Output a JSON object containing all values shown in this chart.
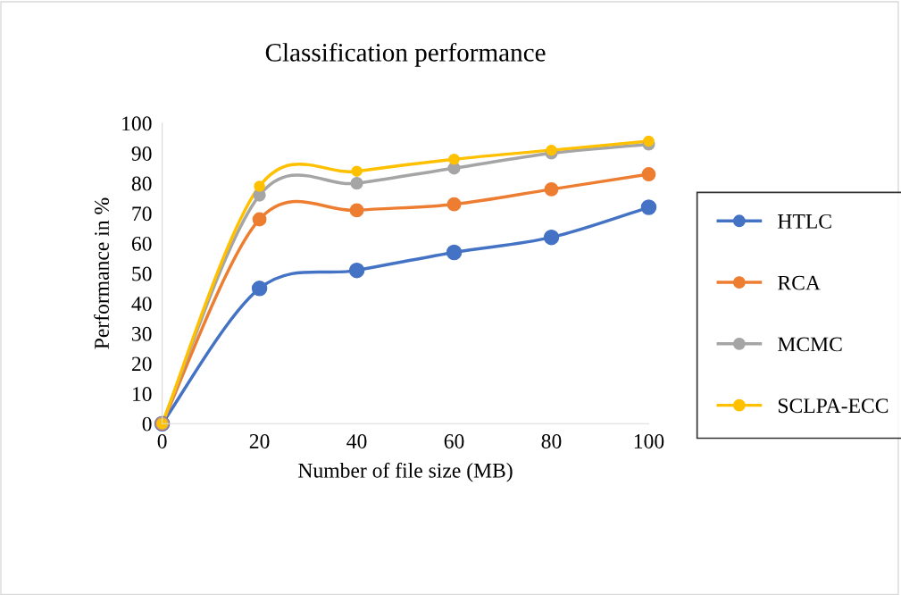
{
  "chart_data": {
    "type": "line",
    "title": "Classification performance",
    "xlabel": "Number of file size (MB)",
    "ylabel": "Performance in %",
    "categories": [
      "0",
      "20",
      "40",
      "60",
      "80",
      "100"
    ],
    "series": [
      {
        "name": "HTLC",
        "color": "#4472c4",
        "values": [
          0,
          45,
          51,
          57,
          62,
          72
        ]
      },
      {
        "name": "RCA",
        "color": "#ed7d31",
        "values": [
          0,
          68,
          71,
          73,
          78,
          83
        ]
      },
      {
        "name": "MCMC",
        "color": "#a5a5a5",
        "values": [
          0,
          76,
          80,
          85,
          90,
          93
        ]
      },
      {
        "name": "SCLPA-ECC",
        "color": "#ffc000",
        "values": [
          0,
          79,
          84,
          88,
          91,
          94
        ]
      }
    ],
    "ylim": [
      0,
      100
    ],
    "yticks": [
      0,
      10,
      20,
      30,
      40,
      50,
      60,
      70,
      80,
      90,
      100
    ],
    "grid": false,
    "legend": "right",
    "marker": "circle",
    "line_style": "solid"
  }
}
